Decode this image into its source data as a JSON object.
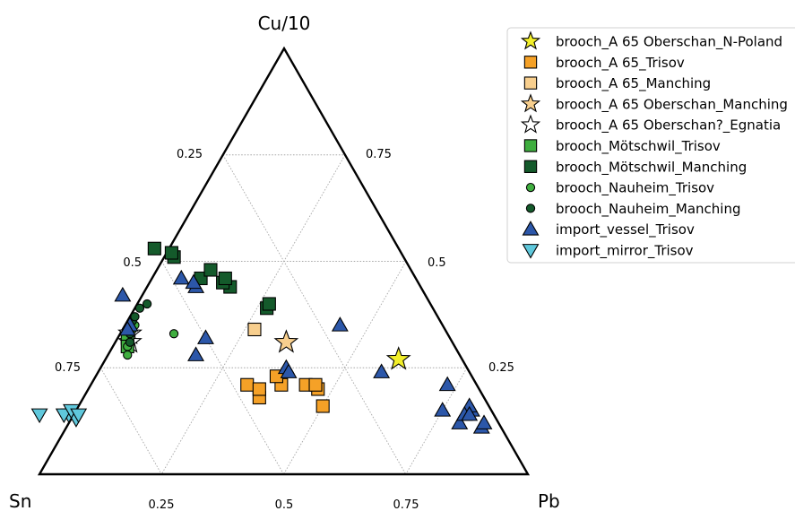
{
  "chart_data": {
    "type": "scatter",
    "subtype": "ternary",
    "vertices": {
      "top": "Cu/10",
      "left": "Sn",
      "right": "Pb"
    },
    "grid": true,
    "grid_steps": [
      0.25,
      0.5,
      0.75
    ],
    "ticks": {
      "bottom": [
        "0.25",
        "0.5",
        "0.75"
      ],
      "left": [
        "0.25",
        "0.5",
        "0.75"
      ],
      "right": [
        "0.75",
        "0.5",
        "0.25"
      ]
    },
    "legend_position": "top-right",
    "series": [
      {
        "name": "brooch_A 65 Oberschan_N-Poland",
        "marker": "star",
        "color": "#f2ef2a",
        "points": [
          [
            0.13,
            0.27
          ]
        ]
      },
      {
        "name": "brooch_A 65_Trisov",
        "marker": "square",
        "color": "#f5a127",
        "points": [
          [
            0.46,
            0.18
          ],
          [
            0.47,
            0.21
          ],
          [
            0.45,
            0.2
          ],
          [
            0.4,
            0.21
          ],
          [
            0.4,
            0.23
          ],
          [
            0.35,
            0.21
          ],
          [
            0.34,
            0.16
          ],
          [
            0.33,
            0.2
          ],
          [
            0.33,
            0.21
          ]
        ]
      },
      {
        "name": "brooch_A 65_Manching",
        "marker": "square",
        "color": "#f8cf8e",
        "points": [
          [
            0.39,
            0.34
          ]
        ]
      },
      {
        "name": "brooch_A 65 Oberschan_Manching",
        "marker": "star",
        "color": "#f8cf8e",
        "points": [
          [
            0.34,
            0.31
          ]
        ]
      },
      {
        "name": "brooch_A 65 Oberschan?_Egnatia",
        "marker": "star",
        "color": "#ffffff",
        "points": [
          [
            0.65,
            0.33
          ],
          [
            0.66,
            0.31
          ]
        ]
      },
      {
        "name": "brooch_Mötschwil_Trisov",
        "marker": "square",
        "color": "#3fae3f",
        "points": [
          [
            0.66,
            0.32
          ],
          [
            0.67,
            0.3
          ]
        ]
      },
      {
        "name": "brooch_Mötschwil_Manching",
        "marker": "square",
        "color": "#145a2b",
        "points": [
          [
            0.5,
            0.53
          ],
          [
            0.47,
            0.51
          ],
          [
            0.47,
            0.52
          ],
          [
            0.39,
            0.44
          ],
          [
            0.4,
            0.45
          ],
          [
            0.44,
            0.46
          ],
          [
            0.41,
            0.48
          ],
          [
            0.39,
            0.46
          ],
          [
            0.34,
            0.39
          ],
          [
            0.33,
            0.4
          ]
        ]
      },
      {
        "name": "brooch_Nauheim_Trisov",
        "marker": "circle",
        "color": "#3fae3f",
        "points": [
          [
            0.68,
            0.28
          ],
          [
            0.67,
            0.3
          ],
          [
            0.64,
            0.34
          ],
          [
            0.63,
            0.35
          ],
          [
            0.56,
            0.33
          ]
        ]
      },
      {
        "name": "brooch_Nauheim_Manching",
        "marker": "circle",
        "color": "#145a2b",
        "points": [
          [
            0.66,
            0.31
          ],
          [
            0.65,
            0.33
          ],
          [
            0.64,
            0.35
          ],
          [
            0.63,
            0.36
          ],
          [
            0.62,
            0.37
          ],
          [
            0.6,
            0.39
          ],
          [
            0.58,
            0.4
          ]
        ]
      },
      {
        "name": "import_vessel_Trisov",
        "marker": "triangle-up",
        "color": "#2c57a9",
        "points": [
          [
            0.62,
            0.42
          ],
          [
            0.48,
            0.46
          ],
          [
            0.46,
            0.44
          ],
          [
            0.46,
            0.45
          ],
          [
            0.64,
            0.35
          ],
          [
            0.65,
            0.34
          ],
          [
            0.5,
            0.32
          ],
          [
            0.54,
            0.28
          ],
          [
            0.37,
            0.25
          ],
          [
            0.37,
            0.24
          ],
          [
            0.21,
            0.35
          ],
          [
            0.18,
            0.24
          ],
          [
            0.06,
            0.21
          ],
          [
            0.04,
            0.15
          ],
          [
            0.04,
            0.16
          ],
          [
            0.1,
            0.15
          ],
          [
            0.08,
            0.12
          ],
          [
            0.06,
            0.14
          ],
          [
            0.04,
            0.11
          ],
          [
            0.03,
            0.12
          ],
          [
            0.05,
            0.14
          ]
        ]
      },
      {
        "name": "import_mirror_Trisov",
        "marker": "triangle-down",
        "color": "#5fc8dc",
        "points": [
          [
            0.93,
            0.14
          ],
          [
            0.86,
            0.13
          ],
          [
            0.87,
            0.14
          ],
          [
            0.88,
            0.14
          ],
          [
            0.86,
            0.15
          ],
          [
            0.85,
            0.14
          ]
        ]
      }
    ]
  }
}
